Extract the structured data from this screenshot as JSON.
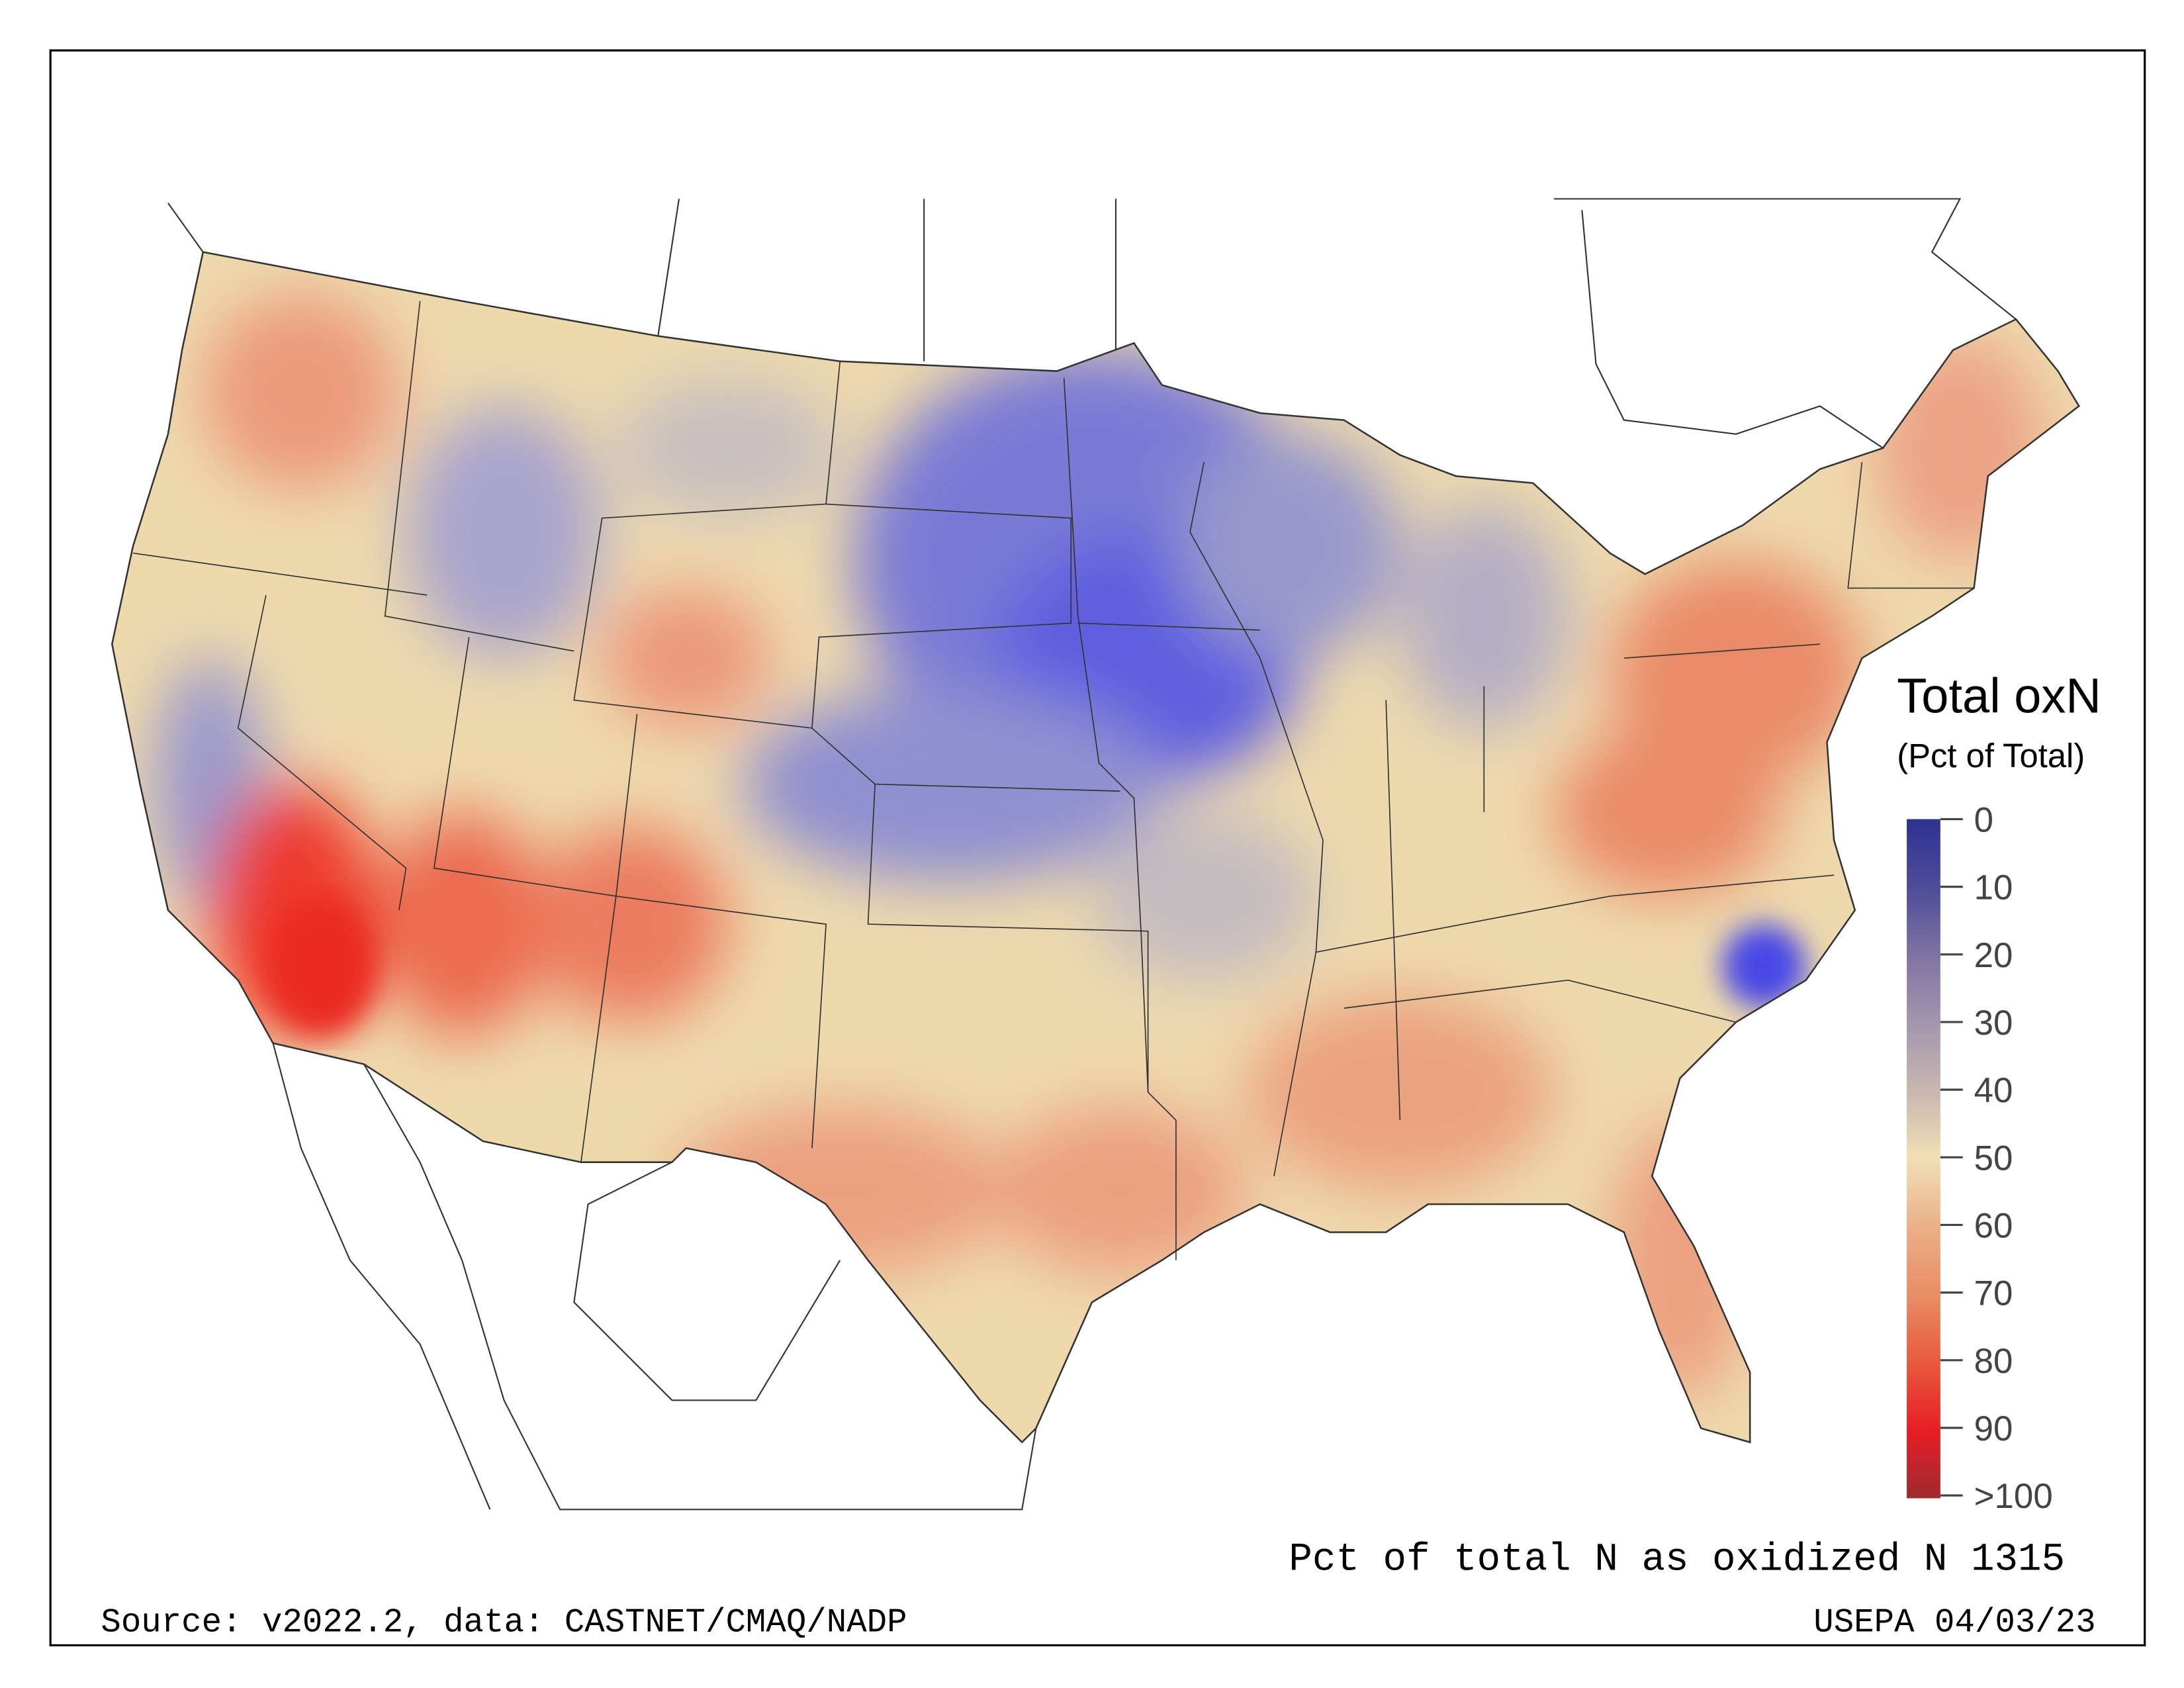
{
  "legend": {
    "title": "Total oxN",
    "subtitle": "(Pct of Total)",
    "ticks": [
      "0",
      "10",
      "20",
      "30",
      "40",
      "50",
      "60",
      "70",
      "80",
      "90",
      ">100"
    ],
    "colors": [
      "#2e3192",
      "#4e4c98",
      "#7f73a2",
      "#a396ae",
      "#c8b6b0",
      "#f2dfb5",
      "#ebb088",
      "#ea8d65",
      "#e85a3e",
      "#e81e25",
      "#9e2a30"
    ]
  },
  "map": {
    "description_title": "Pct of total N as oxidized N 1315",
    "source": "Source: v2022.2, data: CASTNET/CMAQ/NADP",
    "credit": "USEPA 04/03/23"
  }
}
